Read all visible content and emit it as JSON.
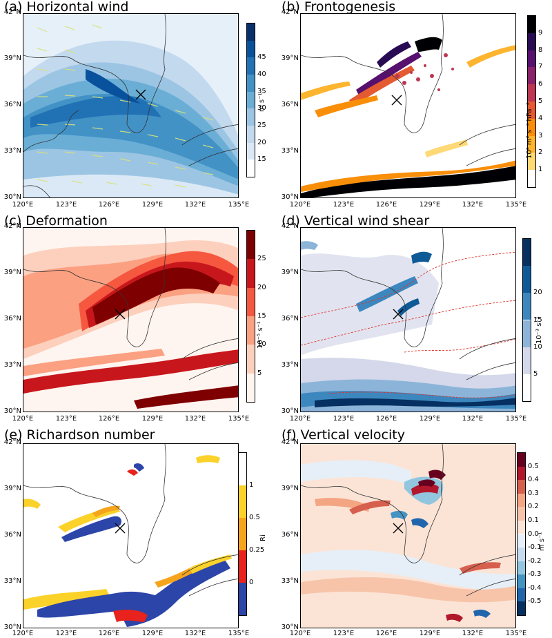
{
  "lat_labels": [
    "42°N",
    "39°N",
    "36°N",
    "33°N",
    "30°N"
  ],
  "lon_labels": [
    "120°E",
    "123°E",
    "126°E",
    "129°E",
    "132°E",
    "135°E"
  ],
  "panels": [
    {
      "title": "(a) Horizontal wind",
      "unit": "m s⁻¹",
      "ticks": [
        "15",
        "20",
        "25",
        "30",
        "35",
        "40",
        "45"
      ],
      "colors": [
        "#ffffff",
        "#dbe9f6",
        "#c2d9ee",
        "#9cc5e3",
        "#6aaed6",
        "#4292c6",
        "#2171b5",
        "#08519c",
        "#08306b"
      ],
      "extend": "both"
    },
    {
      "title": "(b) Frontogenesis",
      "unit": "10⁶ m² s⁻³ hPa⁻²",
      "ticks": [
        "1",
        "2",
        "3",
        "4",
        "5",
        "6",
        "7",
        "8",
        "9"
      ],
      "colors": [
        "#ffffff",
        "#fed976",
        "#fdb42f",
        "#f98e09",
        "#e45a31",
        "#bc3754",
        "#8a226a",
        "#57106e",
        "#280b53",
        "#000004"
      ],
      "extend": "max"
    },
    {
      "title": "(c) Deformation",
      "unit": "10⁻⁵ s⁻¹",
      "ticks": [
        "5",
        "10",
        "15",
        "20",
        "25"
      ],
      "colors": [
        "#fff5f0",
        "#fdd0bd",
        "#fca082",
        "#f6573f",
        "#c8171c",
        "#7f0000"
      ],
      "extend": "max"
    },
    {
      "title": "(d) Vertical wind shear",
      "unit": "10⁻³ s⁻¹",
      "ticks": [
        "5",
        "10",
        "15",
        "20"
      ],
      "colors": [
        "#ffffff",
        "#d4d8ea",
        "#8cb4d9",
        "#3d87bf",
        "#0e5a96",
        "#053061"
      ],
      "extend": "max"
    },
    {
      "title": "(e) Richardson number",
      "unit": "Ri",
      "ticks": [
        "0",
        "0.25",
        "0.5",
        "1"
      ],
      "colors": [
        "#2c45a8",
        "#e8221c",
        "#f5a51c",
        "#fbd22a",
        "#ffffff"
      ],
      "extend": "max"
    },
    {
      "title": "(f) Vertical velocity",
      "unit": "m s⁻¹",
      "ticks": [
        "-0.5",
        "-0.4",
        "-0.3",
        "-0.2",
        "-0.1",
        "0.0",
        "0.1",
        "0.2",
        "0.3",
        "0.4",
        "0.5"
      ],
      "colors": [
        "#053061",
        "#2166ac",
        "#4393c3",
        "#92c5de",
        "#c6dbef",
        "#e6eff7",
        "#fbe4d6",
        "#f7c4aa",
        "#f4a582",
        "#d6604d",
        "#b2182b",
        "#67001f"
      ],
      "extend": "both"
    }
  ]
}
